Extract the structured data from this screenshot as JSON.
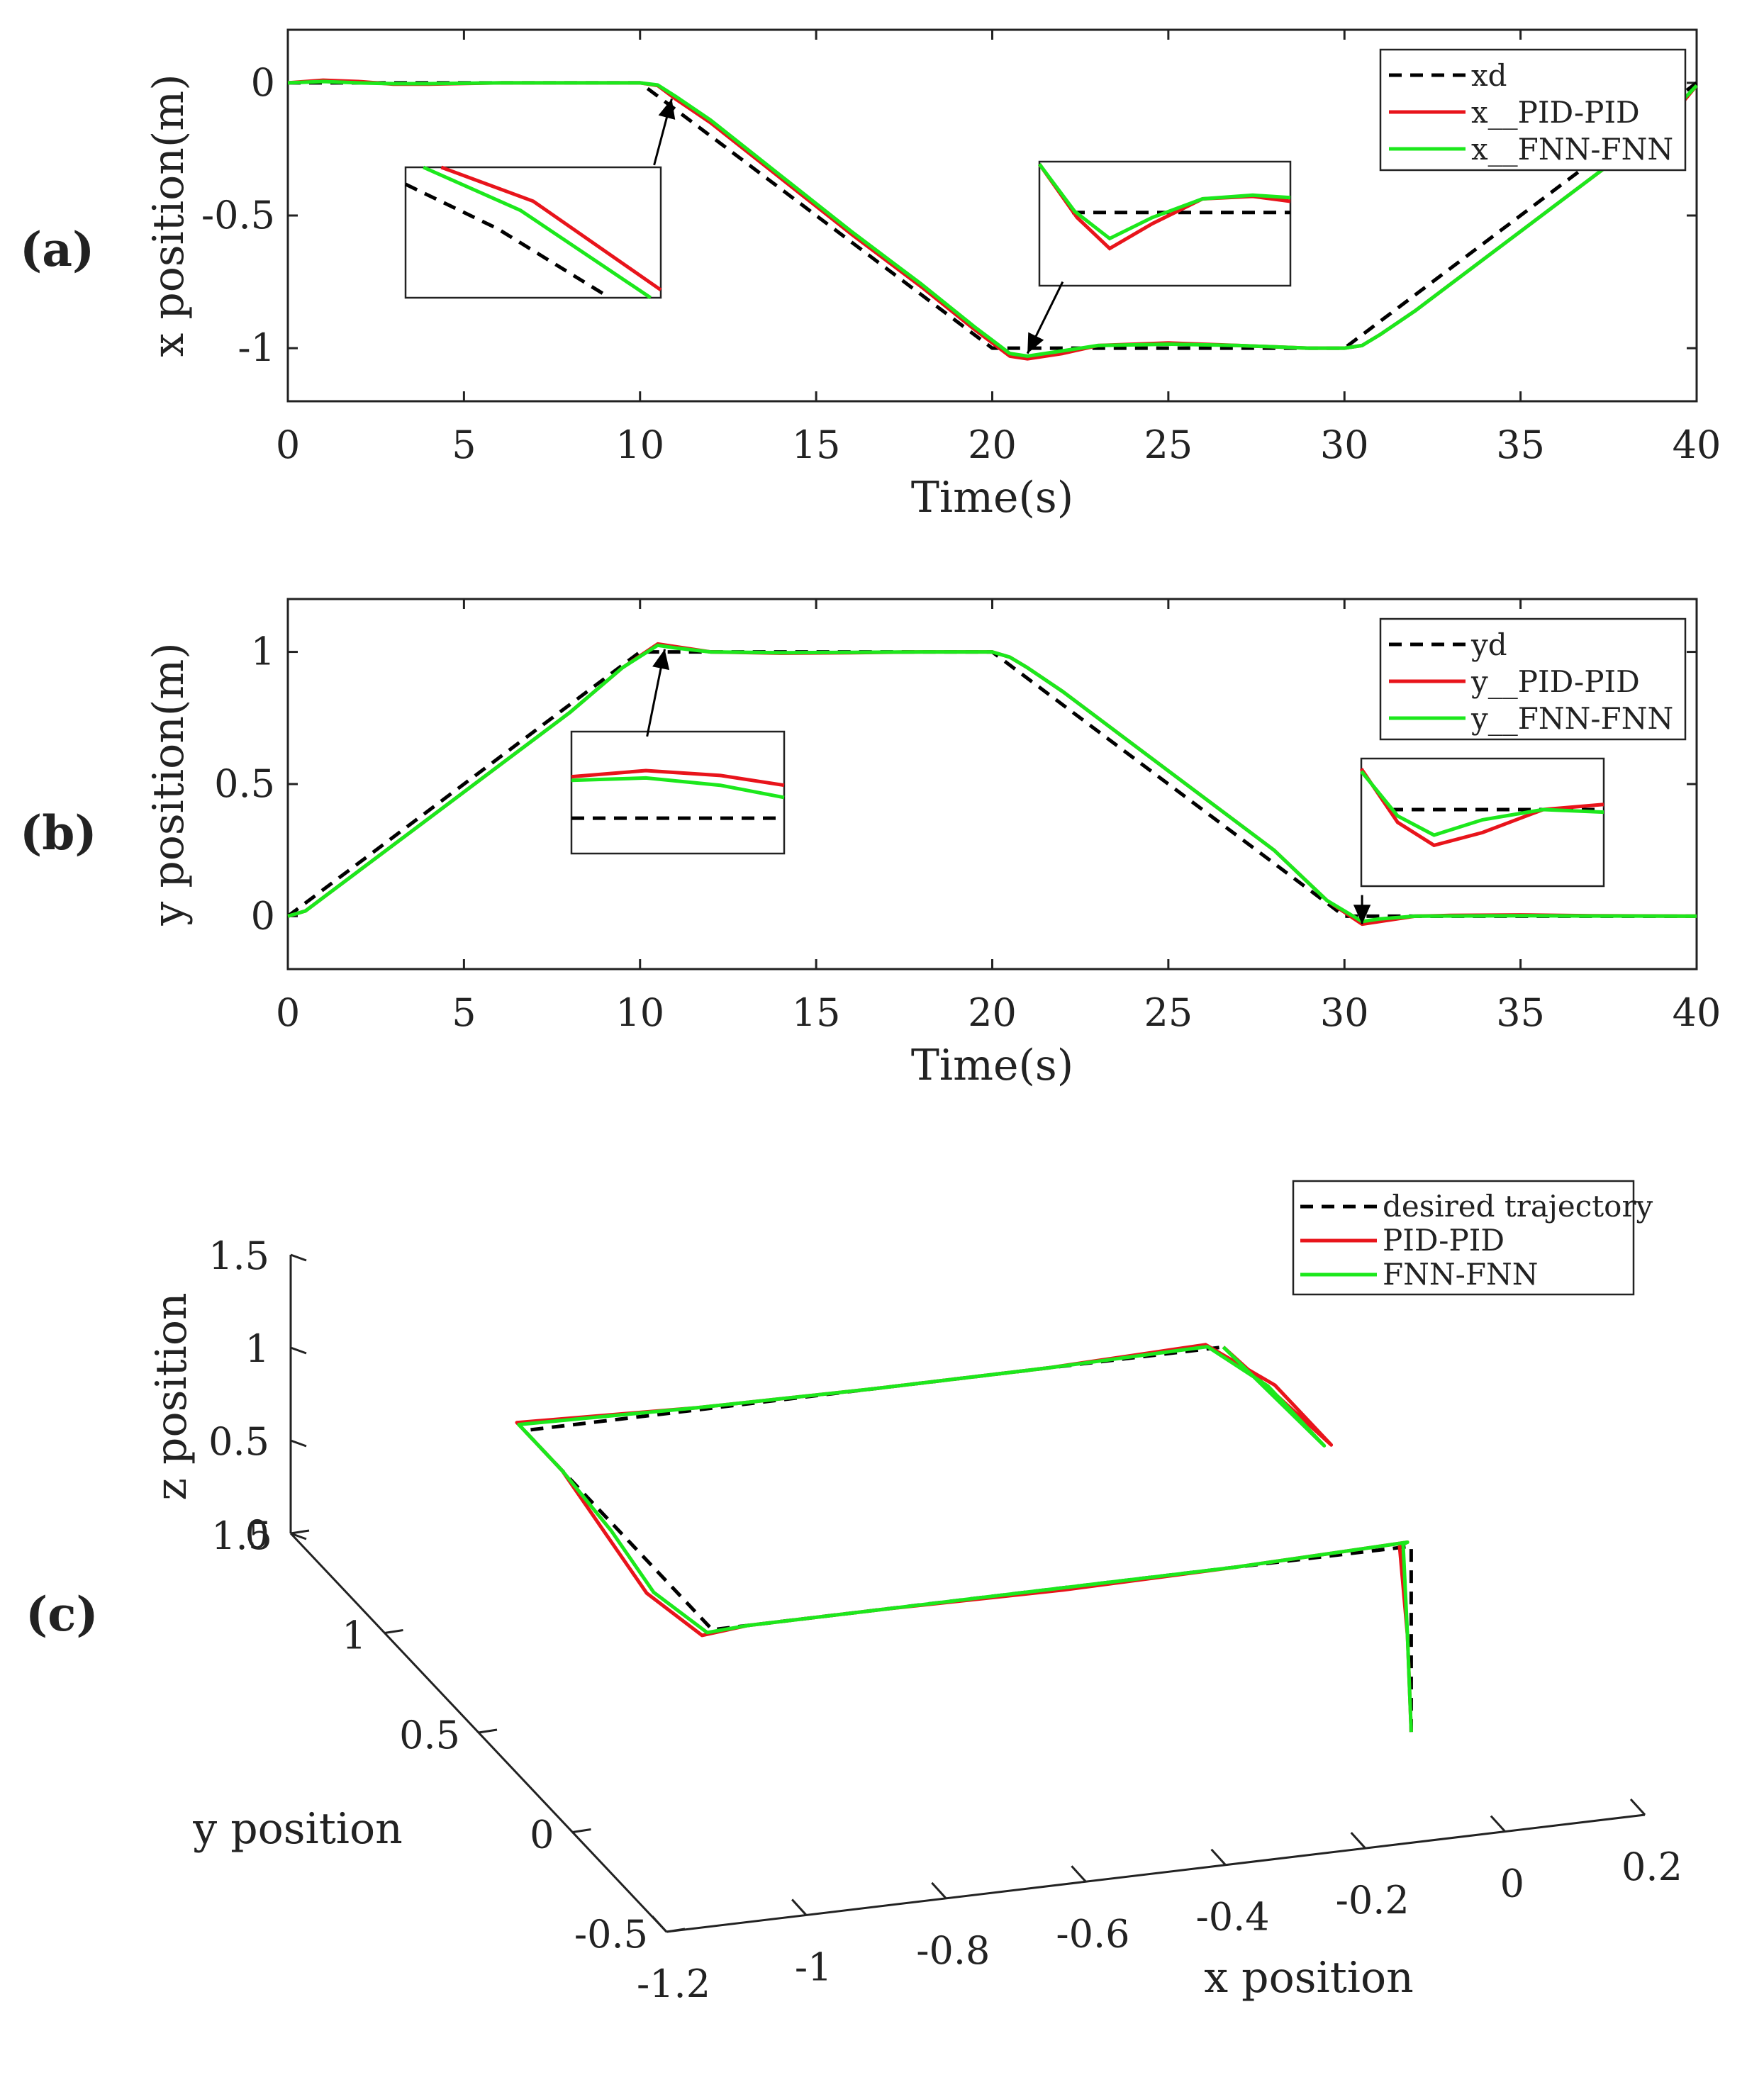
{
  "figure": {
    "panels": [
      {
        "id": "a",
        "label": "(a)"
      },
      {
        "id": "b",
        "label": "(b)"
      },
      {
        "id": "c",
        "label": "(c)"
      }
    ]
  },
  "colors": {
    "desired": "#000000",
    "pid": "#e8141b",
    "fnn": "#1ce81c",
    "axis": "#222222"
  },
  "chart_data": [
    {
      "id": "a",
      "type": "line",
      "xlabel": "Time(s)",
      "ylabel": "x position(m)",
      "xlim": [
        0,
        40
      ],
      "ylim": [
        -1.2,
        0.2
      ],
      "xticks": [
        0,
        5,
        10,
        15,
        20,
        25,
        30,
        35,
        40
      ],
      "yticks": [
        0,
        -0.5,
        -1
      ],
      "ytick_labels": [
        "0",
        "-0.5",
        "-1"
      ],
      "legend_position": "top-right",
      "legend": [
        "xd",
        "x__PID-PID",
        "x__FNN-FNN"
      ],
      "series": [
        {
          "name": "xd",
          "style": "dashed",
          "x": [
            0,
            10,
            20,
            30,
            40
          ],
          "y": [
            0,
            0,
            -1,
            -1,
            0
          ]
        },
        {
          "name": "x__PID-PID",
          "style": "solid",
          "x": [
            0,
            1,
            2,
            3,
            4,
            6,
            8,
            10,
            10.5,
            11,
            12,
            14,
            16,
            18,
            19.5,
            20.5,
            21,
            22,
            23,
            25,
            27,
            29,
            30,
            30.5,
            31,
            32,
            34,
            36,
            38,
            39.5,
            40
          ],
          "y": [
            0,
            0.01,
            0.005,
            -0.005,
            -0.005,
            0,
            0,
            0,
            -0.01,
            -0.06,
            -0.15,
            -0.36,
            -0.57,
            -0.77,
            -0.93,
            -1.03,
            -1.04,
            -1.02,
            -0.99,
            -0.98,
            -0.99,
            -1.0,
            -1.0,
            -0.99,
            -0.95,
            -0.86,
            -0.66,
            -0.46,
            -0.26,
            -0.09,
            -0.01
          ]
        },
        {
          "name": "x__FNN-FNN",
          "style": "solid",
          "x": [
            0,
            1,
            2,
            3,
            4,
            6,
            8,
            10,
            10.5,
            11,
            12,
            14,
            16,
            18,
            19.5,
            20.5,
            21,
            22,
            23,
            25,
            27,
            29,
            30,
            30.5,
            31,
            32,
            34,
            36,
            38,
            39.5,
            40
          ],
          "y": [
            0,
            0.005,
            0.0,
            -0.003,
            -0.003,
            0,
            0,
            0,
            -0.008,
            -0.05,
            -0.14,
            -0.35,
            -0.56,
            -0.76,
            -0.92,
            -1.02,
            -1.03,
            -1.01,
            -0.99,
            -0.985,
            -0.99,
            -1.0,
            -1.0,
            -0.99,
            -0.95,
            -0.86,
            -0.66,
            -0.46,
            -0.26,
            -0.08,
            -0.01
          ]
        }
      ],
      "arrows": [
        {
          "from": [
            10.4,
            -0.31
          ],
          "to": [
            10.9,
            -0.06
          ]
        },
        {
          "from": [
            22,
            -0.75
          ],
          "to": [
            21,
            -1.02
          ]
        }
      ]
    },
    {
      "id": "b",
      "type": "line",
      "xlabel": "Time(s)",
      "ylabel": "y position(m)",
      "xlim": [
        0,
        40
      ],
      "ylim": [
        -0.2,
        1.2
      ],
      "xticks": [
        0,
        5,
        10,
        15,
        20,
        25,
        30,
        35,
        40
      ],
      "yticks": [
        0,
        0.5,
        1
      ],
      "ytick_labels": [
        "0",
        "0.5",
        "1"
      ],
      "legend_position": "top-right",
      "legend": [
        "yd",
        "y__PID-PID",
        "y__FNN-FNN"
      ],
      "series": [
        {
          "name": "yd",
          "style": "dashed",
          "x": [
            0,
            10,
            20,
            30,
            40
          ],
          "y": [
            0,
            1,
            1,
            0,
            0
          ]
        },
        {
          "name": "y__PID-PID",
          "style": "solid",
          "x": [
            0,
            0.5,
            1,
            2,
            4,
            6,
            8,
            9.5,
            10.5,
            11,
            12,
            14,
            16,
            18,
            20,
            20.5,
            21,
            22,
            24,
            26,
            28,
            29.5,
            30.5,
            31,
            32,
            33,
            35,
            37,
            40
          ],
          "y": [
            0,
            0.02,
            0.07,
            0.17,
            0.37,
            0.57,
            0.77,
            0.94,
            1.03,
            1.02,
            1.0,
            0.995,
            0.997,
            1.0,
            1.0,
            0.98,
            0.94,
            0.85,
            0.65,
            0.45,
            0.25,
            0.06,
            -0.03,
            -0.02,
            0.0,
            0.003,
            0.005,
            0.002,
            0
          ]
        },
        {
          "name": "y__FNN-FNN",
          "style": "solid",
          "x": [
            0,
            0.5,
            1,
            2,
            4,
            6,
            8,
            9.5,
            10.5,
            11,
            12,
            14,
            16,
            18,
            20,
            20.5,
            21,
            22,
            24,
            26,
            28,
            29.5,
            30.5,
            31,
            32,
            33,
            35,
            37,
            40
          ],
          "y": [
            0,
            0.02,
            0.07,
            0.17,
            0.37,
            0.57,
            0.77,
            0.94,
            1.025,
            1.015,
            1.0,
            0.997,
            0.998,
            1.0,
            1.0,
            0.98,
            0.94,
            0.85,
            0.65,
            0.45,
            0.25,
            0.06,
            -0.02,
            -0.01,
            0.0,
            0.001,
            0.002,
            0.001,
            0
          ]
        }
      ],
      "arrows": [
        {
          "from": [
            10.2,
            0.68
          ],
          "to": [
            10.7,
            1.01
          ]
        },
        {
          "from": [
            30.5,
            0.08
          ],
          "to": [
            30.5,
            -0.03
          ]
        }
      ]
    },
    {
      "id": "c",
      "type": "line3d",
      "xlabel": "x position",
      "ylabel": "y position",
      "zlabel": "z position",
      "xlim": [
        -1.2,
        0.2
      ],
      "ylim": [
        -0.5,
        1.5
      ],
      "zlim": [
        0,
        1.5
      ],
      "xticks": [
        -1.2,
        -1,
        -0.8,
        -0.6,
        -0.4,
        -0.2,
        0,
        0.2
      ],
      "xtick_labels": [
        "-1.2",
        "-1",
        "-0.8",
        "-0.6",
        "-0.4",
        "-0.2",
        "0",
        "0.2"
      ],
      "yticks": [
        -0.5,
        0,
        0.5,
        1,
        1.5
      ],
      "ytick_labels": [
        "-0.5",
        "0",
        "0.5",
        "1",
        "1.5"
      ],
      "zticks": [
        0,
        0.5,
        1,
        1.5
      ],
      "ztick_labels": [
        "0",
        "0.5",
        "1",
        "1.5"
      ],
      "legend_position": "top-right",
      "legend": [
        "desired trajectory",
        "PID-PID",
        "FNN-FNN"
      ],
      "series": [
        {
          "name": "desired trajectory",
          "style": "dashed",
          "x": [
            0,
            0,
            0,
            -1,
            -1,
            0
          ],
          "y": [
            0,
            0,
            0,
            0,
            1,
            1
          ],
          "z": [
            0,
            1,
            1,
            1,
            1,
            1
          ]
        },
        {
          "name": "PID-PID",
          "style": "solid",
          "x": [
            0,
            0,
            0.01,
            0.0,
            -0.25,
            -0.5,
            -0.75,
            -0.95,
            -1.02,
            -1.04,
            -1.02,
            -1.0,
            -1.0,
            -0.75,
            -0.5,
            -0.25,
            -0.02,
            0.02,
            0.02,
            0.0
          ],
          "y": [
            0,
            0.02,
            0.1,
            0.02,
            0.0,
            -0.01,
            0.0,
            0.0,
            -0.02,
            0.2,
            0.5,
            0.8,
            1.04,
            1.01,
            1.0,
            1.0,
            1.02,
            0.8,
            0.5,
            1.0
          ],
          "z": [
            0,
            0.5,
            0.9,
            1.0,
            1.0,
            1.0,
            1.0,
            1.0,
            1.0,
            1.0,
            1.0,
            1.0,
            1.0,
            1.0,
            1.0,
            1.0,
            1.0,
            1.0,
            1.0,
            1.0
          ]
        },
        {
          "name": "FNN-FNN",
          "style": "solid",
          "x": [
            0,
            0,
            0.01,
            0.0,
            -0.25,
            -0.5,
            -0.75,
            -0.95,
            -1.01,
            -1.03,
            -1.01,
            -1.0,
            -1.0,
            -0.75,
            -0.5,
            -0.25,
            -0.02,
            0.01,
            0.01,
            0.0
          ],
          "y": [
            0,
            0.02,
            0.08,
            0.02,
            0.0,
            0.0,
            0.0,
            0.0,
            -0.01,
            0.2,
            0.5,
            0.8,
            1.03,
            1.01,
            1.0,
            1.0,
            1.01,
            0.8,
            0.5,
            1.0
          ],
          "z": [
            0,
            0.5,
            0.92,
            1.0,
            1.0,
            1.0,
            1.0,
            1.0,
            1.0,
            1.0,
            1.0,
            1.0,
            1.0,
            1.0,
            1.0,
            1.0,
            1.0,
            1.0,
            1.0,
            1.0
          ]
        }
      ]
    }
  ]
}
